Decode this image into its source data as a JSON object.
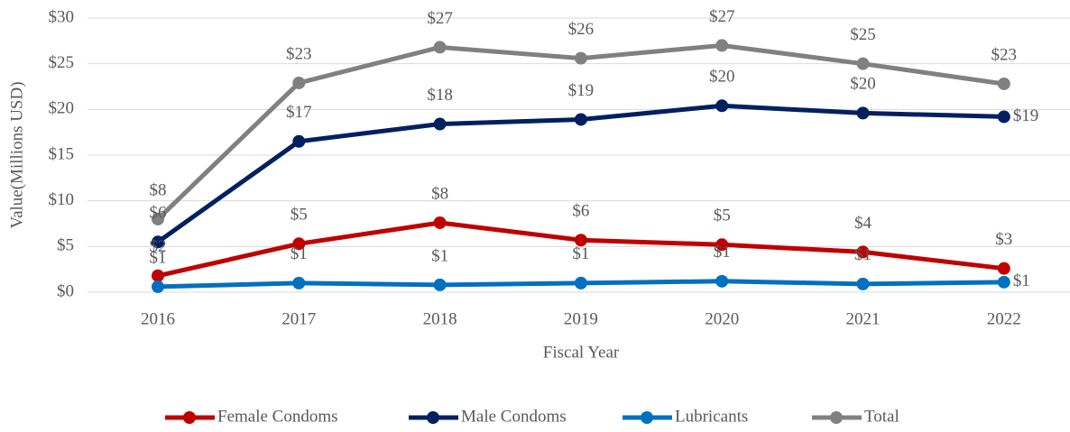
{
  "chart_data": {
    "type": "line",
    "x_label": "Fiscal Year",
    "y_label": "Value(Millions USD)",
    "categories": [
      "2016",
      "2017",
      "2018",
      "2019",
      "2020",
      "2021",
      "2022"
    ],
    "series": [
      {
        "name": "Female Condoms",
        "color": "#c00000",
        "values": [
          1.8,
          5.3,
          7.6,
          5.7,
          5.2,
          4.4,
          2.6
        ],
        "value_labels": [
          "$2",
          "$5",
          "$8",
          "$6",
          "$5",
          "$4",
          "$3"
        ]
      },
      {
        "name": "Male Condoms",
        "color": "#002060",
        "values": [
          5.5,
          16.5,
          18.4,
          18.9,
          20.4,
          19.6,
          19.2
        ],
        "value_labels": [
          "$6",
          "$17",
          "$18",
          "$19",
          "$20",
          "$20",
          "$19"
        ]
      },
      {
        "name": "Lubricants",
        "color": "#0070c0",
        "values": [
          0.6,
          1.0,
          0.8,
          1.0,
          1.2,
          0.9,
          1.1
        ],
        "value_labels": [
          "$1",
          "$1",
          "$1",
          "$1",
          "$1",
          "$1",
          "$1"
        ]
      },
      {
        "name": "Total",
        "color": "#808080",
        "values": [
          8.0,
          22.9,
          26.8,
          25.6,
          27.0,
          25.0,
          22.8
        ],
        "value_labels": [
          "$8",
          "$23",
          "$27",
          "$26",
          "$27",
          "$25",
          "$23"
        ]
      }
    ],
    "ylim": [
      0,
      30
    ],
    "yticks": [
      {
        "value": 0,
        "label": "$0"
      },
      {
        "value": 5,
        "label": "$5"
      },
      {
        "value": 10,
        "label": "$10"
      },
      {
        "value": 15,
        "label": "$15"
      },
      {
        "value": 20,
        "label": "$20"
      },
      {
        "value": 25,
        "label": "$25"
      },
      {
        "value": 30,
        "label": "$30"
      }
    ],
    "grid": true,
    "legend": "bottom"
  }
}
